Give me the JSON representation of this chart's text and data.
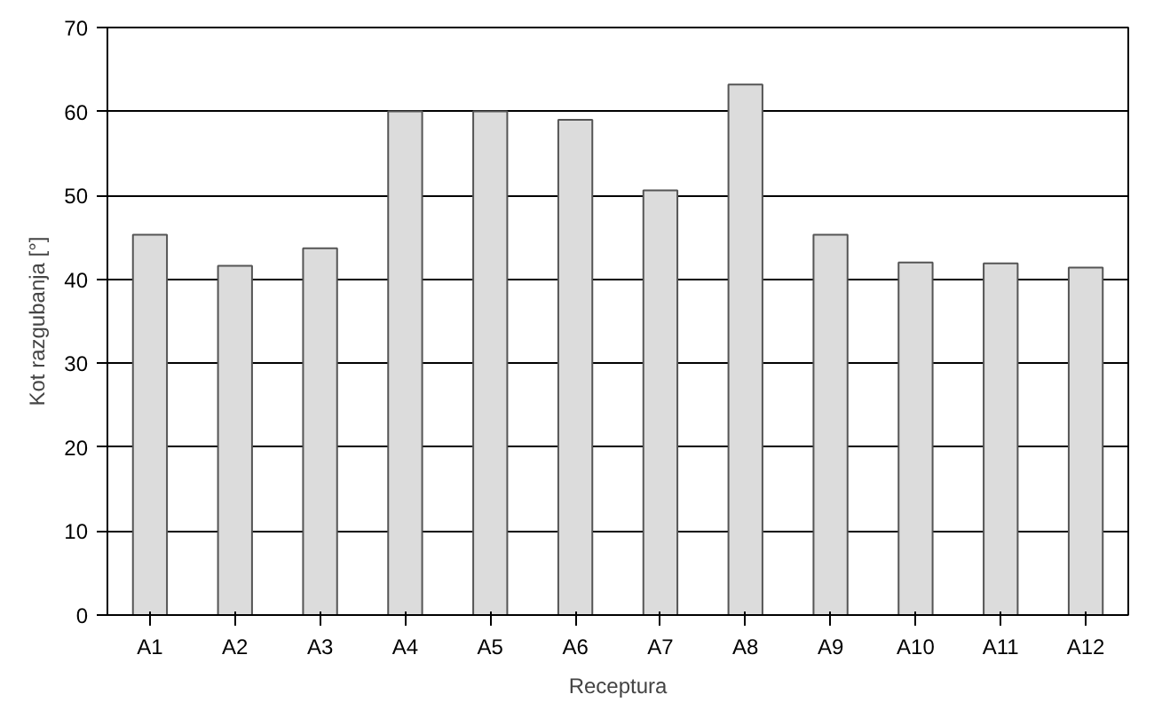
{
  "chart_data": {
    "type": "bar",
    "xlabel": "Receptura",
    "ylabel": "Kot razgubanja [°]",
    "categories": [
      "A1",
      "A2",
      "A3",
      "A4",
      "A5",
      "A6",
      "A7",
      "A8",
      "A9",
      "A10",
      "A11",
      "A12"
    ],
    "values": [
      45.3,
      41.6,
      43.7,
      60,
      60,
      59,
      50.6,
      63.2,
      45.3,
      42,
      41.9,
      41.4
    ],
    "color": "#dcdcdc",
    "ylim": [
      0,
      70
    ],
    "yticks": [
      0,
      10,
      20,
      30,
      40,
      50,
      60,
      70
    ],
    "grid": "y"
  }
}
